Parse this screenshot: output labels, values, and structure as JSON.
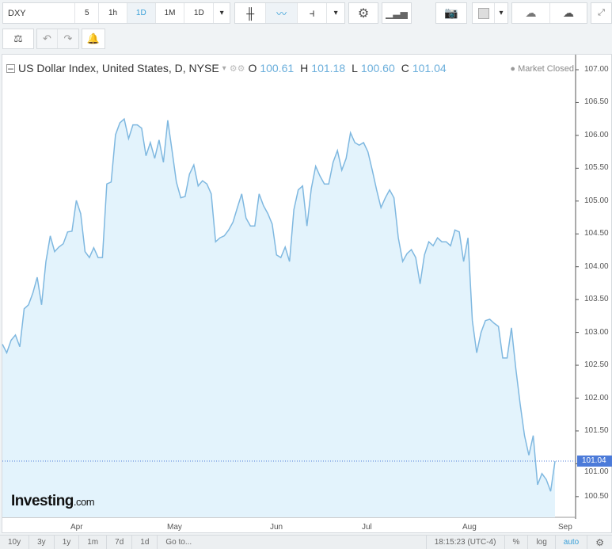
{
  "toolbar": {
    "symbol": "DXY",
    "intervals": [
      "5",
      "1h",
      "1D",
      "1M",
      "1D"
    ],
    "active_interval": "1D"
  },
  "legend": {
    "title": "US Dollar Index, United States, D, NYSE",
    "open_label": "O",
    "open": "100.61",
    "high_label": "H",
    "high": "101.18",
    "low_label": "L",
    "low": "100.60",
    "close_label": "C",
    "close": "101.04",
    "status": "Market Closed"
  },
  "bottom": {
    "ranges": [
      "10y",
      "3y",
      "1y",
      "1m",
      "7d",
      "1d"
    ],
    "goto": "Go to...",
    "time": "18:15:23 (UTC-4)",
    "percent": "%",
    "log": "log",
    "auto": "auto"
  },
  "logo": {
    "text": "Investing",
    "suffix": ".com"
  },
  "colors": {
    "line": "#7fb8e0",
    "fill": "#e3f3fc",
    "accent": "#3aa0d8",
    "price_tag": "#4c7bd9"
  },
  "chart_data": {
    "type": "area",
    "ylim": [
      100.2,
      107.0
    ],
    "y_ticks": [
      "107.00",
      "106.50",
      "106.00",
      "105.50",
      "105.00",
      "104.50",
      "104.00",
      "103.50",
      "103.00",
      "102.50",
      "102.00",
      "101.50",
      "101.00",
      "100.50"
    ],
    "x_ticks": [
      "Apr",
      "May",
      "Jun",
      "Jul",
      "Aug",
      "Sep"
    ],
    "last_price": "101.04",
    "values": [
      102.82,
      102.69,
      102.88,
      102.96,
      102.78,
      103.36,
      103.42,
      103.6,
      103.84,
      103.42,
      104.08,
      104.47,
      104.23,
      104.3,
      104.35,
      104.53,
      104.54,
      105.01,
      104.81,
      104.23,
      104.14,
      104.29,
      104.14,
      104.14,
      105.26,
      105.29,
      106.01,
      106.19,
      106.25,
      105.95,
      106.16,
      106.16,
      106.11,
      105.69,
      105.89,
      105.65,
      105.93,
      105.59,
      106.23,
      105.77,
      105.29,
      105.05,
      105.07,
      105.41,
      105.55,
      105.23,
      105.31,
      105.26,
      105.11,
      104.38,
      104.44,
      104.47,
      104.56,
      104.68,
      104.9,
      105.11,
      104.74,
      104.62,
      104.62,
      105.11,
      104.93,
      104.81,
      104.65,
      104.18,
      104.14,
      104.3,
      104.08,
      104.87,
      105.17,
      105.23,
      104.62,
      105.19,
      105.53,
      105.38,
      105.26,
      105.26,
      105.59,
      105.77,
      105.47,
      105.65,
      106.04,
      105.89,
      105.85,
      105.89,
      105.75,
      105.47,
      105.17,
      104.9,
      105.05,
      105.17,
      105.05,
      104.44,
      104.08,
      104.2,
      104.26,
      104.14,
      103.74,
      104.18,
      104.38,
      104.32,
      104.44,
      104.38,
      104.38,
      104.32,
      104.56,
      104.53,
      104.08,
      104.44,
      103.18,
      102.69,
      103.0,
      103.18,
      103.2,
      103.14,
      103.09,
      102.61,
      102.61,
      103.07,
      102.45,
      101.91,
      101.43,
      101.13,
      101.43,
      100.68,
      100.85,
      100.76,
      100.58,
      101.04
    ]
  }
}
